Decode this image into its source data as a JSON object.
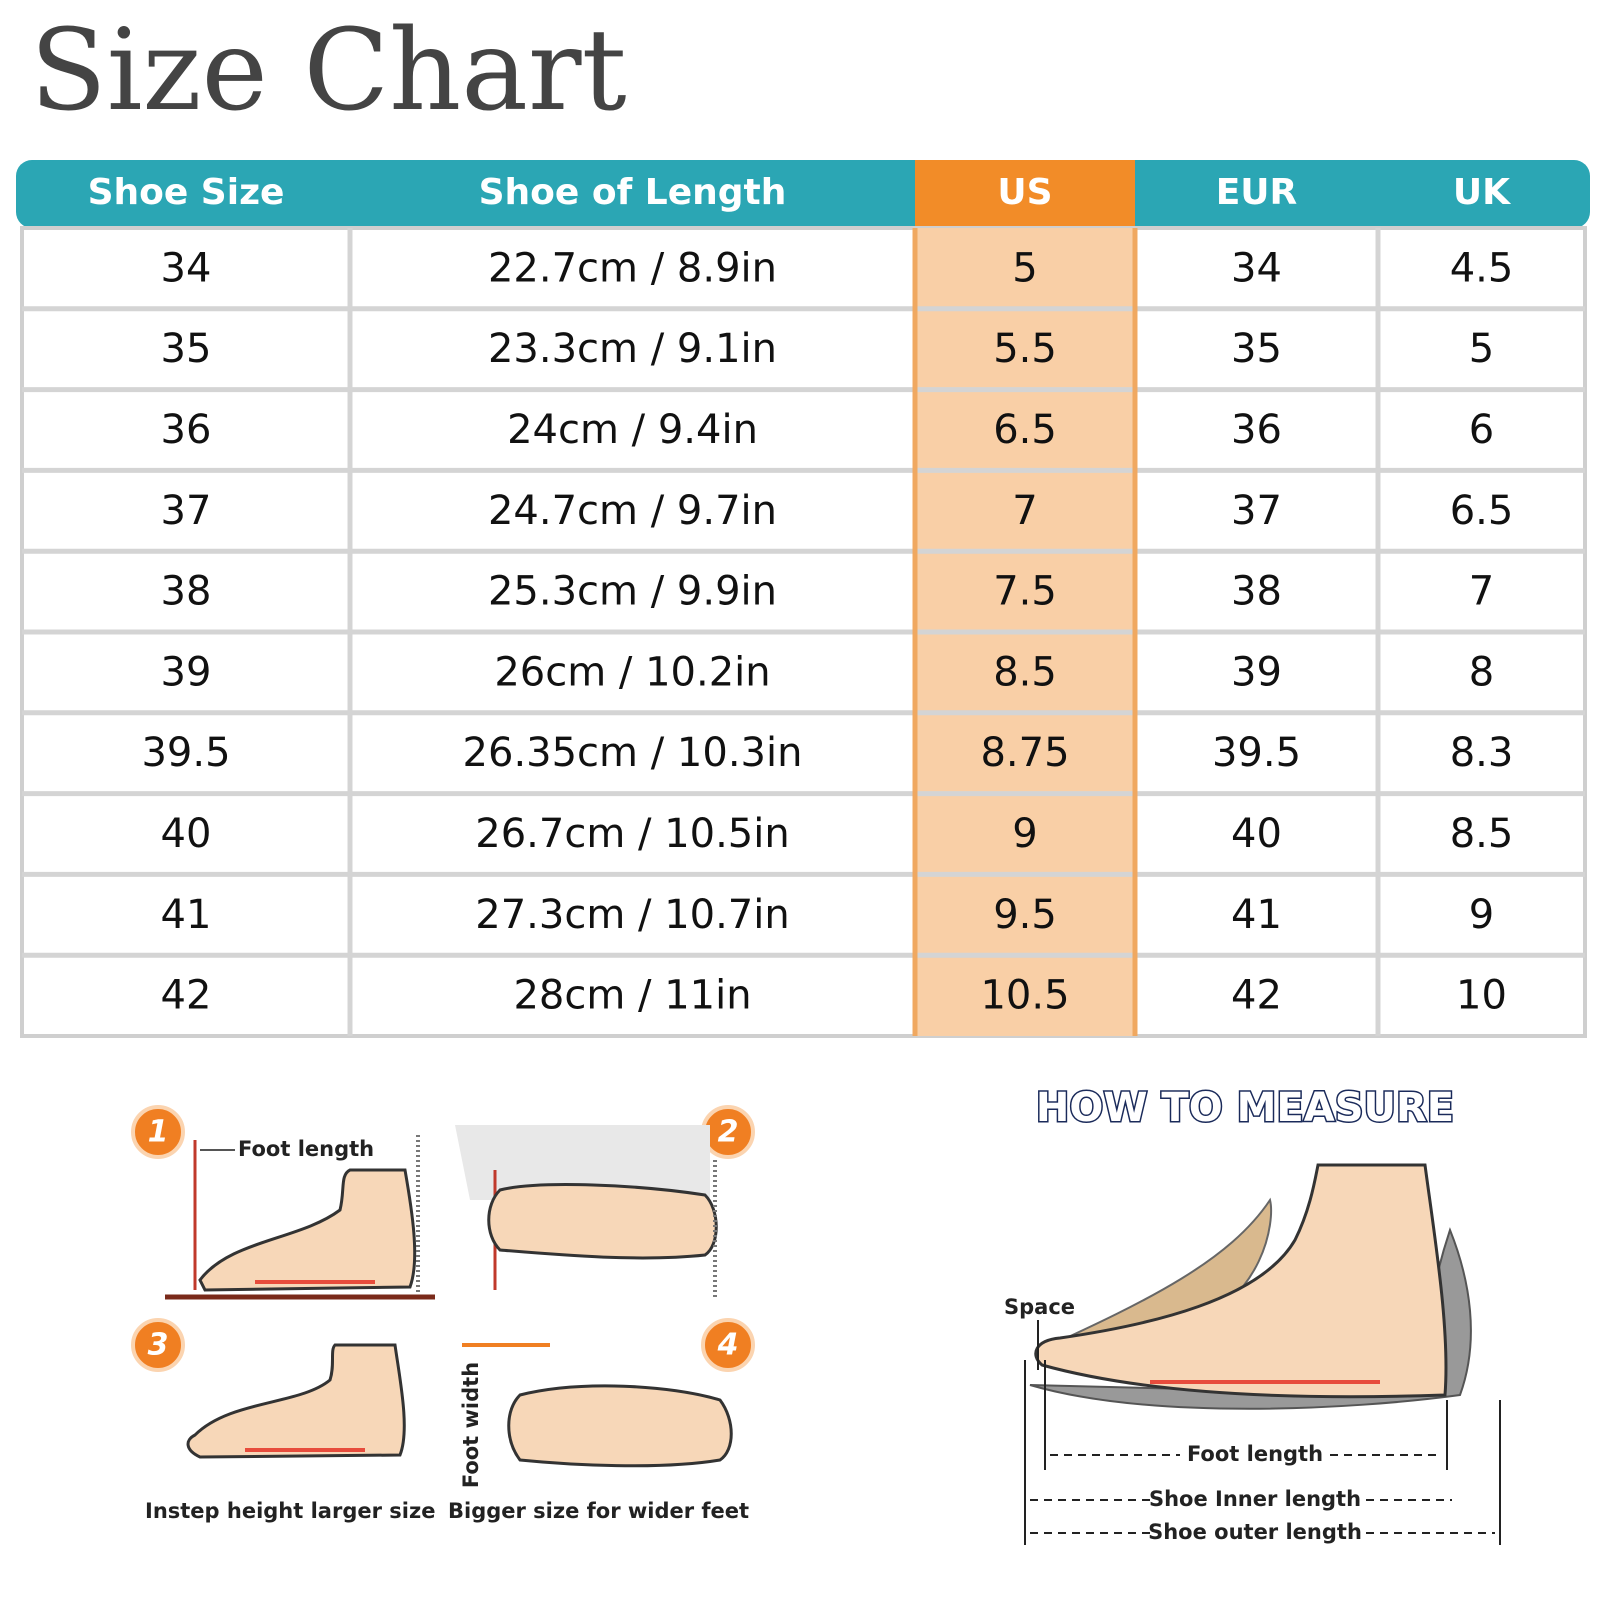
{
  "header": {
    "title": "Size Chart"
  },
  "table": {
    "columns": [
      "Shoe Size",
      "Shoe of Length",
      "US",
      "EUR",
      "UK"
    ],
    "rows": [
      [
        "34",
        "22.7cm / 8.9in",
        "5",
        "34",
        "4.5"
      ],
      [
        "35",
        "23.3cm / 9.1in",
        "5.5",
        "35",
        "5"
      ],
      [
        "36",
        "24cm / 9.4in",
        "6.5",
        "36",
        "6"
      ],
      [
        "37",
        "24.7cm / 9.7in",
        "7",
        "37",
        "6.5"
      ],
      [
        "38",
        "25.3cm / 9.9in",
        "7.5",
        "38",
        "7"
      ],
      [
        "39",
        "26cm / 10.2in",
        "8.5",
        "39",
        "8"
      ],
      [
        "39.5",
        "26.35cm / 10.3in",
        "8.75",
        "39.5",
        "8.3"
      ],
      [
        "40",
        "26.7cm / 10.5in",
        "9",
        "40",
        "8.5"
      ],
      [
        "41",
        "27.3cm / 10.7in",
        "9.5",
        "41",
        "9"
      ],
      [
        "42",
        "28cm / 11in",
        "10.5",
        "42",
        "10"
      ]
    ]
  },
  "steps": [
    {
      "number": "1",
      "label": "Foot length"
    },
    {
      "number": "2"
    },
    {
      "number": "3",
      "label": "Instep height larger size"
    },
    {
      "number": "4",
      "label": "Bigger size for wider feet",
      "axis_label": "Foot width"
    }
  ],
  "measure": {
    "title": "HOW TO MEASURE",
    "space": "Space",
    "lines": [
      "Foot length",
      "Shoe Inner length",
      "Shoe outer length"
    ]
  }
}
